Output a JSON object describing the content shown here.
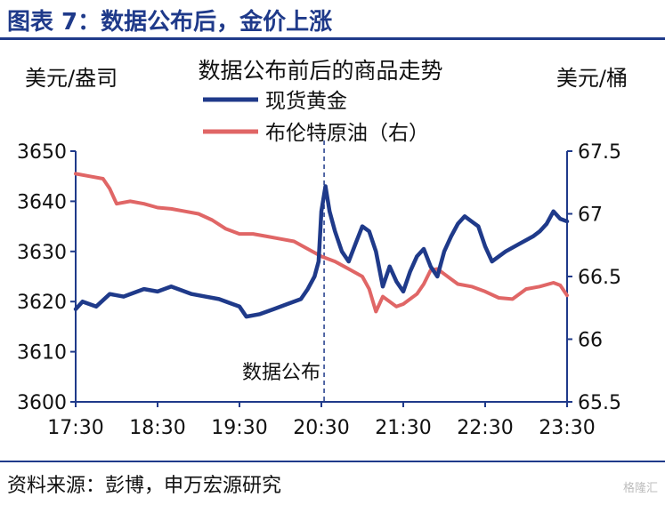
{
  "figure": {
    "title": "图表 7：数据公布后，金价上涨",
    "source": "资料来源：彭博，申万宏源研究",
    "watermark": "格隆汇"
  },
  "chart_data": {
    "type": "line",
    "title": "数据公布前后的商品走势",
    "ylabel_left": "美元/盎司",
    "ylabel_right": "美元/桶",
    "x_ticks": [
      "17:30",
      "18:30",
      "19:30",
      "20:30",
      "21:30",
      "22:30",
      "23:30"
    ],
    "xlim": [
      "17:30",
      "23:30"
    ],
    "y_left": {
      "min": 3600,
      "max": 3650,
      "ticks": [
        "3600",
        "3610",
        "3620",
        "3630",
        "3640",
        "3650"
      ]
    },
    "y_right": {
      "min": 65.5,
      "max": 67.5,
      "ticks": [
        "65.5",
        "66",
        "66.5",
        "67",
        "67.5"
      ]
    },
    "annotation": {
      "label": "数据公布",
      "x": "20:32",
      "style": "dashed vertical line"
    },
    "series": [
      {
        "name": "现货黄金",
        "axis": "left",
        "color": "#1f3a8a",
        "points": [
          [
            "17:30",
            3618.5
          ],
          [
            "17:35",
            3620.0
          ],
          [
            "17:45",
            3619.0
          ],
          [
            "17:55",
            3621.5
          ],
          [
            "18:05",
            3621.0
          ],
          [
            "18:20",
            3622.5
          ],
          [
            "18:30",
            3622.0
          ],
          [
            "18:40",
            3623.0
          ],
          [
            "18:55",
            3621.5
          ],
          [
            "19:05",
            3621.0
          ],
          [
            "19:15",
            3620.5
          ],
          [
            "19:25",
            3619.5
          ],
          [
            "19:30",
            3619.0
          ],
          [
            "19:35",
            3617.0
          ],
          [
            "19:45",
            3617.5
          ],
          [
            "19:55",
            3618.5
          ],
          [
            "20:05",
            3619.5
          ],
          [
            "20:15",
            3620.5
          ],
          [
            "20:20",
            3622.5
          ],
          [
            "20:25",
            3625.0
          ],
          [
            "20:28",
            3628.0
          ],
          [
            "20:30",
            3638.0
          ],
          [
            "20:33",
            3643.0
          ],
          [
            "20:36",
            3638.0
          ],
          [
            "20:40",
            3634.0
          ],
          [
            "20:45",
            3630.0
          ],
          [
            "20:50",
            3628.0
          ],
          [
            "20:55",
            3631.5
          ],
          [
            "21:00",
            3635.0
          ],
          [
            "21:05",
            3634.0
          ],
          [
            "21:10",
            3630.0
          ],
          [
            "21:15",
            3623.0
          ],
          [
            "21:20",
            3627.0
          ],
          [
            "21:25",
            3624.0
          ],
          [
            "21:30",
            3622.0
          ],
          [
            "21:35",
            3626.0
          ],
          [
            "21:40",
            3629.0
          ],
          [
            "21:45",
            3630.5
          ],
          [
            "21:50",
            3627.0
          ],
          [
            "21:55",
            3625.0
          ],
          [
            "22:00",
            3630.0
          ],
          [
            "22:05",
            3633.0
          ],
          [
            "22:10",
            3635.5
          ],
          [
            "22:15",
            3637.0
          ],
          [
            "22:20",
            3636.0
          ],
          [
            "22:25",
            3635.0
          ],
          [
            "22:30",
            3631.0
          ],
          [
            "22:35",
            3628.0
          ],
          [
            "22:40",
            3629.0
          ],
          [
            "22:45",
            3630.0
          ],
          [
            "22:55",
            3631.5
          ],
          [
            "23:05",
            3633.0
          ],
          [
            "23:10",
            3634.0
          ],
          [
            "23:15",
            3635.5
          ],
          [
            "23:20",
            3638.0
          ],
          [
            "23:25",
            3636.5
          ],
          [
            "23:30",
            3636.0
          ]
        ]
      },
      {
        "name": "布伦特原油（右）",
        "axis": "right",
        "color": "#e06666",
        "points": [
          [
            "17:30",
            67.32
          ],
          [
            "17:40",
            67.3
          ],
          [
            "17:50",
            67.28
          ],
          [
            "17:55",
            67.2
          ],
          [
            "18:00",
            67.08
          ],
          [
            "18:10",
            67.1
          ],
          [
            "18:20",
            67.08
          ],
          [
            "18:30",
            67.05
          ],
          [
            "18:40",
            67.04
          ],
          [
            "18:50",
            67.02
          ],
          [
            "19:00",
            67.0
          ],
          [
            "19:10",
            66.95
          ],
          [
            "19:20",
            66.88
          ],
          [
            "19:30",
            66.84
          ],
          [
            "19:40",
            66.84
          ],
          [
            "19:50",
            66.82
          ],
          [
            "20:00",
            66.8
          ],
          [
            "20:10",
            66.78
          ],
          [
            "20:20",
            66.72
          ],
          [
            "20:30",
            66.66
          ],
          [
            "20:40",
            66.62
          ],
          [
            "20:50",
            66.56
          ],
          [
            "21:00",
            66.5
          ],
          [
            "21:05",
            66.4
          ],
          [
            "21:10",
            66.22
          ],
          [
            "21:15",
            66.34
          ],
          [
            "21:20",
            66.3
          ],
          [
            "21:25",
            66.26
          ],
          [
            "21:30",
            66.28
          ],
          [
            "21:40",
            66.36
          ],
          [
            "21:45",
            66.44
          ],
          [
            "21:50",
            66.55
          ],
          [
            "21:55",
            66.56
          ],
          [
            "22:00",
            66.52
          ],
          [
            "22:10",
            66.44
          ],
          [
            "22:20",
            66.42
          ],
          [
            "22:30",
            66.38
          ],
          [
            "22:40",
            66.33
          ],
          [
            "22:50",
            66.32
          ],
          [
            "23:00",
            66.4
          ],
          [
            "23:10",
            66.42
          ],
          [
            "23:20",
            66.45
          ],
          [
            "23:25",
            66.43
          ],
          [
            "23:30",
            66.35
          ]
        ]
      }
    ]
  }
}
